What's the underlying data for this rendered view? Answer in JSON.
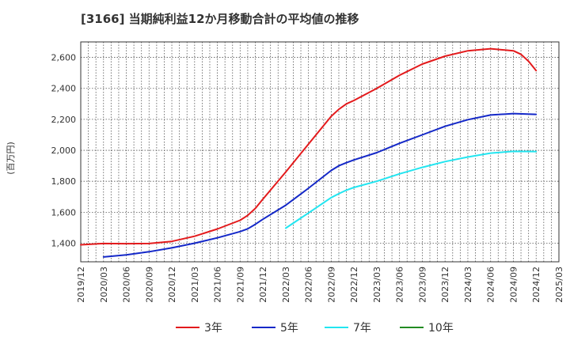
{
  "chart_data": {
    "type": "line",
    "title": "[3166]  当期純利益12か月移動合計の平均値の推移",
    "ylabel": "(百万円)",
    "xlabel": "",
    "ylim": [
      1280,
      2700
    ],
    "yticks": [
      1400,
      1600,
      1800,
      2000,
      2200,
      2400,
      2600
    ],
    "ytick_labels": [
      "1,400",
      "1,600",
      "1,800",
      "2,000",
      "2,200",
      "2,400",
      "2,600"
    ],
    "xlim": [
      "2019-12",
      "2025-03"
    ],
    "xtick_labels": [
      "2019/12",
      "2020/03",
      "2020/06",
      "2020/09",
      "2020/12",
      "2021/03",
      "2021/06",
      "2021/09",
      "2021/12",
      "2022/03",
      "2022/06",
      "2022/09",
      "2022/12",
      "2023/03",
      "2023/06",
      "2023/09",
      "2023/12",
      "2024/03",
      "2024/06",
      "2024/09",
      "2024/12",
      "2025/03"
    ],
    "grid": true,
    "legend": "bottom",
    "series": [
      {
        "name": "3年",
        "color": "#e31a1c",
        "points": [
          [
            "2019-12",
            1390
          ],
          [
            "2020-03",
            1398
          ],
          [
            "2020-06",
            1397
          ],
          [
            "2020-09",
            1398
          ],
          [
            "2020-12",
            1412
          ],
          [
            "2021-03",
            1445
          ],
          [
            "2021-06",
            1492
          ],
          [
            "2021-09",
            1548
          ],
          [
            "2021-10",
            1580
          ],
          [
            "2021-11",
            1625
          ],
          [
            "2021-12",
            1685
          ],
          [
            "2022-03",
            1860
          ],
          [
            "2022-06",
            2040
          ],
          [
            "2022-09",
            2220
          ],
          [
            "2022-10",
            2265
          ],
          [
            "2022-11",
            2300
          ],
          [
            "2022-12",
            2322
          ],
          [
            "2023-03",
            2400
          ],
          [
            "2023-06",
            2485
          ],
          [
            "2023-09",
            2557
          ],
          [
            "2023-12",
            2608
          ],
          [
            "2024-03",
            2643
          ],
          [
            "2024-06",
            2656
          ],
          [
            "2024-09",
            2643
          ],
          [
            "2024-10",
            2620
          ],
          [
            "2024-11",
            2575
          ],
          [
            "2024-12",
            2515
          ]
        ]
      },
      {
        "name": "5年",
        "color": "#1428c8",
        "points": [
          [
            "2020-03",
            1311
          ],
          [
            "2020-06",
            1325
          ],
          [
            "2020-09",
            1345
          ],
          [
            "2020-12",
            1370
          ],
          [
            "2021-03",
            1400
          ],
          [
            "2021-06",
            1435
          ],
          [
            "2021-09",
            1475
          ],
          [
            "2021-10",
            1493
          ],
          [
            "2021-11",
            1522
          ],
          [
            "2021-12",
            1555
          ],
          [
            "2022-03",
            1645
          ],
          [
            "2022-06",
            1755
          ],
          [
            "2022-09",
            1870
          ],
          [
            "2022-10",
            1900
          ],
          [
            "2022-11",
            1920
          ],
          [
            "2022-12",
            1938
          ],
          [
            "2023-03",
            1985
          ],
          [
            "2023-06",
            2045
          ],
          [
            "2023-09",
            2100
          ],
          [
            "2023-12",
            2155
          ],
          [
            "2024-03",
            2198
          ],
          [
            "2024-06",
            2228
          ],
          [
            "2024-09",
            2237
          ],
          [
            "2024-12",
            2232
          ]
        ]
      },
      {
        "name": "7年",
        "color": "#22e5f0",
        "points": [
          [
            "2022-03",
            1497
          ],
          [
            "2022-06",
            1595
          ],
          [
            "2022-09",
            1695
          ],
          [
            "2022-10",
            1720
          ],
          [
            "2022-11",
            1743
          ],
          [
            "2022-12",
            1760
          ],
          [
            "2023-03",
            1800
          ],
          [
            "2023-06",
            1848
          ],
          [
            "2023-09",
            1890
          ],
          [
            "2023-12",
            1927
          ],
          [
            "2024-03",
            1957
          ],
          [
            "2024-06",
            1982
          ],
          [
            "2024-09",
            1993
          ],
          [
            "2024-12",
            1992
          ]
        ]
      },
      {
        "name": "10年",
        "color": "#228b22",
        "points": []
      }
    ]
  }
}
